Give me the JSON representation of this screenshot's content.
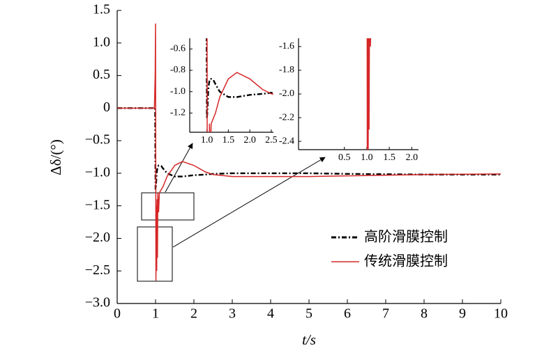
{
  "chart_data": {
    "type": "line",
    "x_label": "t/s",
    "y_label": "Δδ/(°)",
    "x": [
      0,
      0.5,
      0.9,
      0.97,
      0.99,
      1.0,
      1.01,
      1.02,
      1.03,
      1.04,
      1.05,
      1.06,
      1.08,
      1.1,
      1.15,
      1.2,
      1.3,
      1.5,
      1.7,
      2.0,
      2.3,
      2.5,
      3,
      4,
      5,
      6,
      8,
      10
    ],
    "series": [
      {
        "name": "高阶滑膜控制",
        "color": "#000000",
        "dash": true,
        "values": [
          0,
          0,
          0,
          0,
          0,
          -1.25,
          -1.2,
          -1.1,
          -1.0,
          -0.95,
          -0.92,
          -0.9,
          -0.88,
          -0.88,
          -0.89,
          -0.93,
          -1.0,
          -1.05,
          -1.05,
          -1.03,
          -1.02,
          -1.01,
          -1.0,
          -1.0,
          -1.0,
          -1.01,
          -1.02,
          -1.02
        ]
      },
      {
        "name": "传统滑膜控制",
        "color": "#d62728",
        "dash": false,
        "values": [
          0,
          0,
          0,
          0,
          0.5,
          1.3,
          -2.65,
          -1.5,
          -2.5,
          -1.4,
          -2.3,
          -1.3,
          -1.6,
          -1.3,
          -1.25,
          -1.2,
          -1.05,
          -0.88,
          -0.82,
          -0.88,
          -0.98,
          -1.02,
          -1.05,
          -1.05,
          -1.05,
          -1.04,
          -1.02,
          -1.01
        ]
      }
    ],
    "xlim": [
      0,
      10
    ],
    "ylim": [
      -3,
      1.5
    ],
    "xticks": [
      0,
      1,
      2,
      3,
      4,
      5,
      6,
      7,
      8,
      9,
      10
    ],
    "yticks": [
      {
        "value": 1.5,
        "label": "1.5"
      },
      {
        "value": 1,
        "label": "1.0"
      },
      0.5,
      0,
      {
        "value": -0.5,
        "label": "−0.5"
      },
      {
        "value": -1,
        "label": "−1.0"
      },
      {
        "value": -1.5,
        "label": "−1.5"
      },
      {
        "value": -2,
        "label": "−2.0"
      },
      {
        "value": -2.5,
        "label": "−2.5"
      },
      {
        "value": -3,
        "label": "−3.0"
      }
    ],
    "legend": "lower right",
    "insets": [
      {
        "xlim": [
          0.6,
          2.55
        ],
        "ylim": [
          -1.38,
          -0.5
        ],
        "xticks": [
          {
            "value": 1,
            "label": "1.0"
          },
          1.5,
          {
            "value": 2,
            "label": "2.0"
          },
          2.5
        ],
        "yticks": [
          -0.6,
          -0.8,
          {
            "value": -1,
            "label": "-1.0"
          },
          -1.2
        ]
      },
      {
        "xlim": [
          -0.52,
          2.15
        ],
        "ylim": [
          -2.47,
          -1.53
        ],
        "xticks": [
          0.5,
          {
            "value": 1,
            "label": "1.0"
          },
          1.5,
          {
            "value": 2,
            "label": "2.0"
          }
        ],
        "yticks": [
          -1.6,
          -1.8,
          {
            "value": -2,
            "label": "-2.0"
          },
          -2.2,
          -2.4
        ]
      }
    ]
  }
}
